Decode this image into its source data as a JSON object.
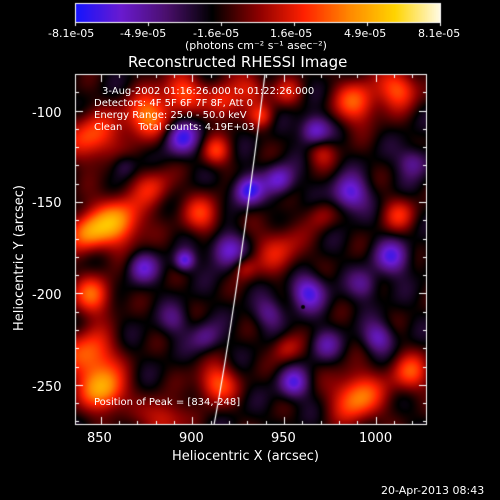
{
  "colorbar": {
    "tick_labels": [
      "-8.1e-05",
      "-4.9e-05",
      "-1.6e-05",
      "1.6e-05",
      "4.9e-05",
      "8.1e-05"
    ],
    "unit_label": "(photons cm⁻² s⁻¹ asec⁻²)",
    "range": [
      -8.1e-05,
      8.1e-05
    ],
    "palette": [
      "#1414ff",
      "#6a1ad0",
      "#4a0f6c",
      "#000000",
      "#8b0000",
      "#ff2000",
      "#ff8800",
      "#ffd400",
      "#fffbe6"
    ]
  },
  "plot": {
    "title": "Reconstructed RHESSI Image",
    "xlabel": "Heliocentric X (arcsec)",
    "ylabel": "Heliocentric Y (arcsec)",
    "x_ticks": [
      "850",
      "900",
      "950",
      "1000"
    ],
    "y_ticks": [
      "-100",
      "-150",
      "-200",
      "-250"
    ],
    "xlim": [
      836,
      1028
    ],
    "ylim": [
      -272,
      -80
    ],
    "annotations": [
      "3-Aug-2002 01:16:26.000 to 01:22:26.000",
      "Detectors: 4F 5F 6F 7F 8F, Att 0",
      "Energy Range: 25.0 - 50.0 keV",
      "Clean     Total counts: 4.19E+03"
    ],
    "peak_label": "Position of Peak = [834,-248]"
  },
  "footer": {
    "timestamp": "20-Apr-2013 08:43"
  }
}
